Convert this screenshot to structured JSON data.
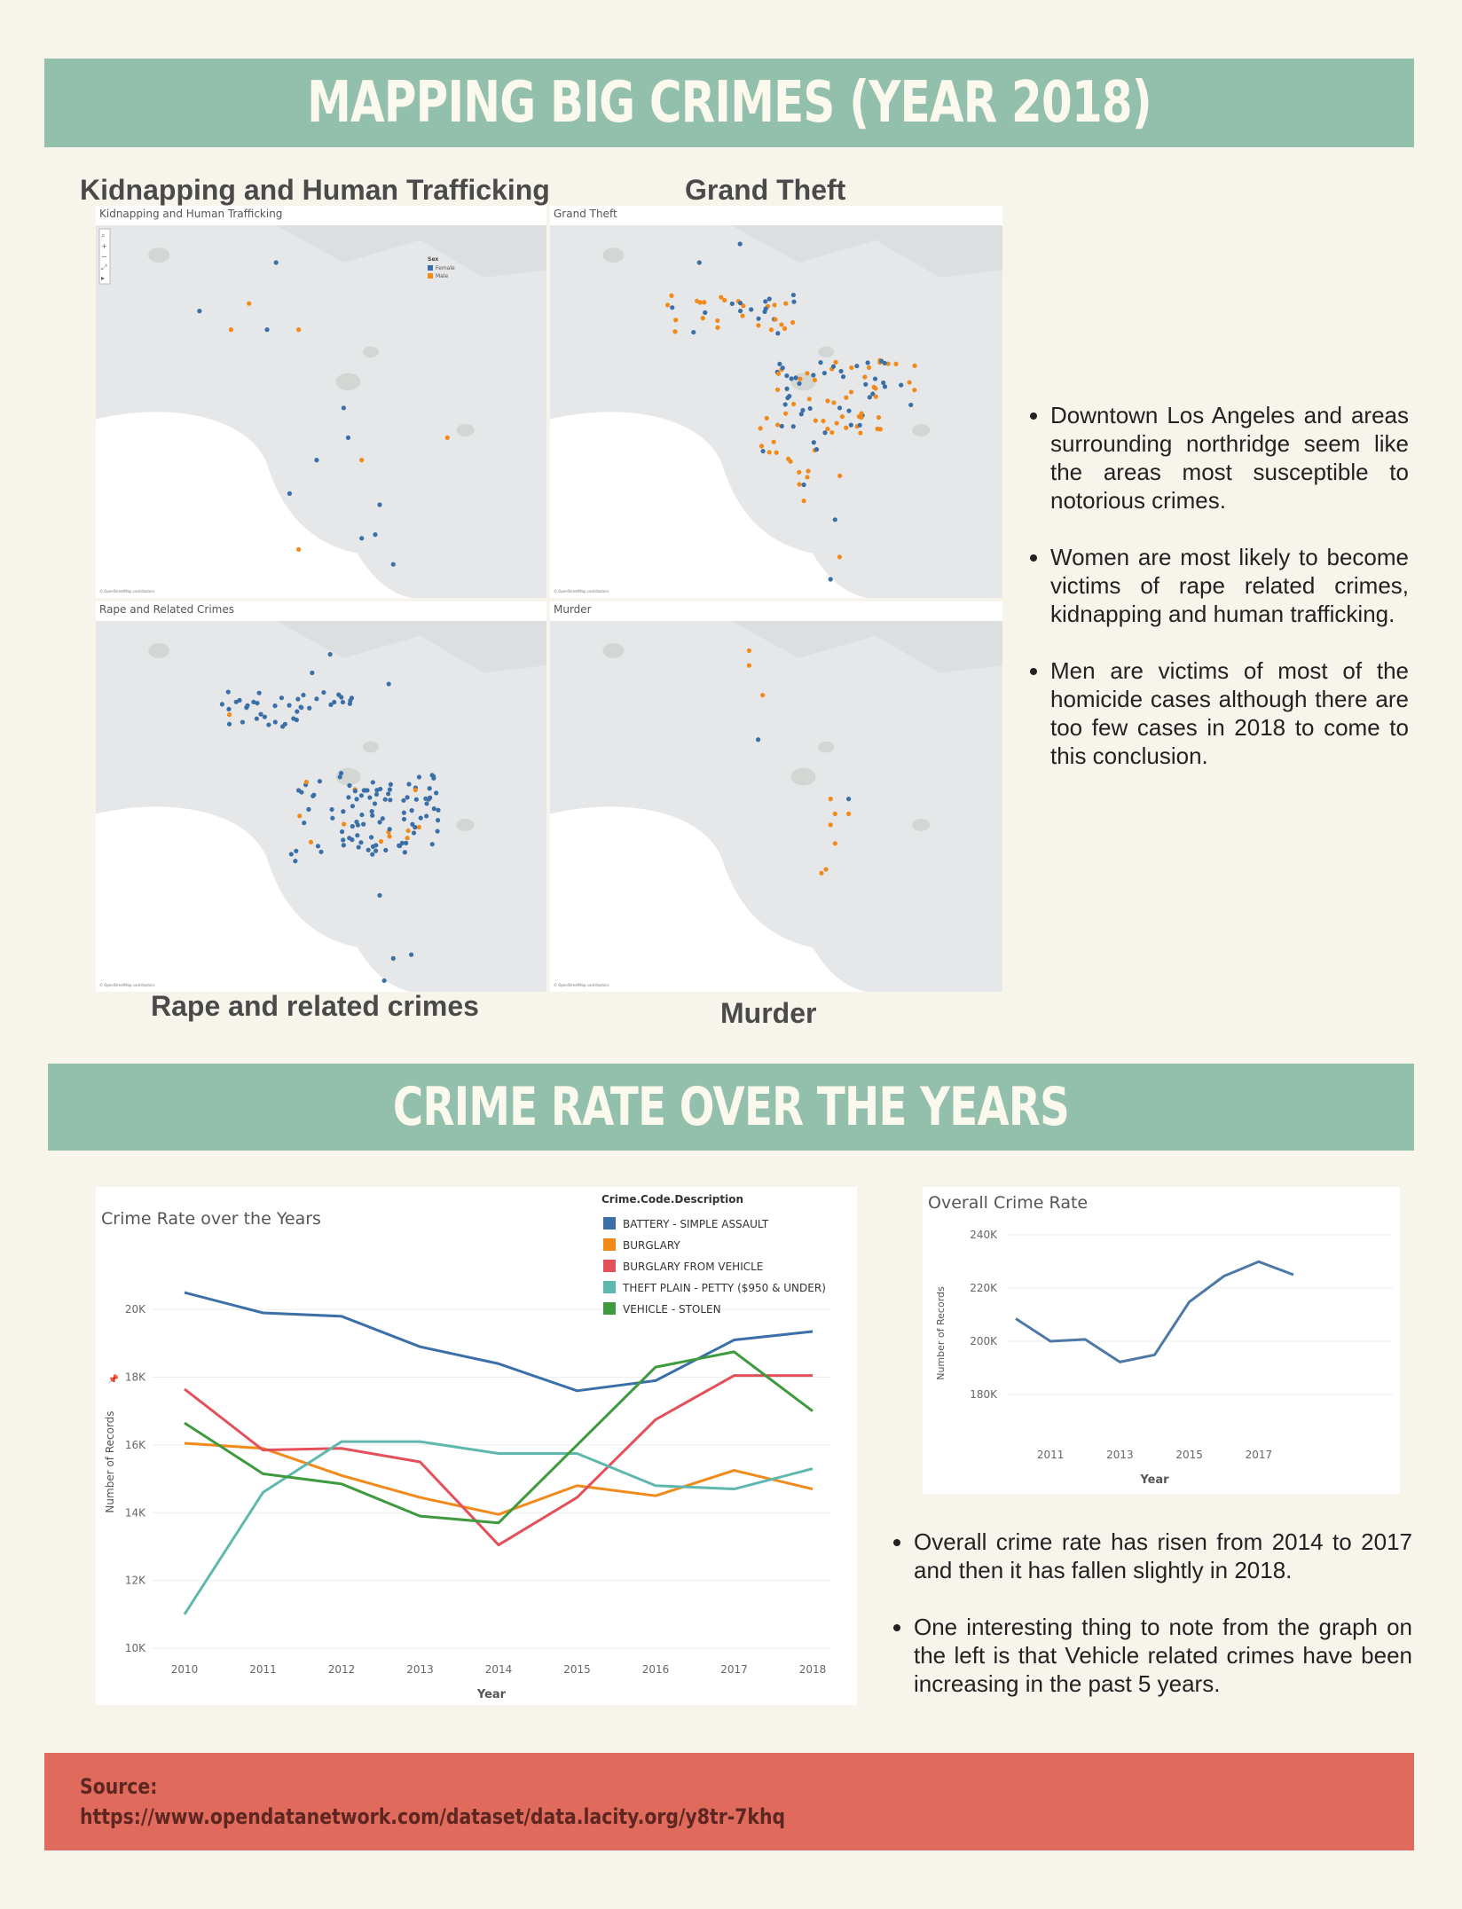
{
  "header": {
    "title": "MAPPING BIG CRIMES (YEAR 2018)"
  },
  "maps": {
    "kidnapping_title": "Kidnapping and Human Trafficking",
    "kidnapping_label": "Kidnapping and Human Trafficking",
    "grandtheft_title": "Grand Theft",
    "grandtheft_label": "Grand Theft",
    "rape_title": "Rape and related crimes",
    "rape_label": "Rape and Related Crimes",
    "murder_title": "Murder",
    "murder_label": "Murder",
    "legend_title": "Sex",
    "legend_female": "Female",
    "legend_male": "Male",
    "credit": "© OpenStreetMap contributors"
  },
  "findings_maps": [
    "Downtown Los Angeles and areas surrounding northridge seem like the areas most susceptible to notorious crimes.",
    "Women are most likely to become victims of rape related crimes, kidnapping and human trafficking.",
    "Men are victims of most of the homicide cases although there are too few cases in 2018 to come to this conclusion."
  ],
  "section2": {
    "title": "CRIME RATE OVER THE YEARS"
  },
  "colors": {
    "female": "#3a6fa8",
    "male": "#f28a1a",
    "battery": "#3a6fa8",
    "burglary": "#f28a1a",
    "burglary_vehicle": "#e4505a",
    "theft_plain": "#5fb8ae",
    "vehicle_stolen": "#3f9a3e",
    "overall": "#4e79a7"
  },
  "chart_data": [
    {
      "type": "line",
      "title": "Crime Rate over the Years",
      "xlabel": "Year",
      "ylabel": "Number of Records",
      "legend_title": "Crime.Code.Description",
      "legend_position": "top-right",
      "x": [
        2010,
        2011,
        2012,
        2013,
        2014,
        2015,
        2016,
        2017,
        2018
      ],
      "ylim": [
        10000,
        21000
      ],
      "yticks": [
        "10K",
        "12K",
        "14K",
        "16K",
        "18K",
        "20K"
      ],
      "grid": true,
      "series": [
        {
          "name": "BATTERY - SIMPLE ASSAULT",
          "values": [
            20500,
            19900,
            19800,
            18900,
            18400,
            17600,
            17900,
            19100,
            19350
          ]
        },
        {
          "name": "BURGLARY",
          "values": [
            16050,
            15900,
            15100,
            14450,
            13950,
            14800,
            14500,
            15250,
            14700
          ]
        },
        {
          "name": "BURGLARY FROM VEHICLE",
          "values": [
            17650,
            15850,
            15900,
            15500,
            13050,
            14450,
            16750,
            18050,
            18050
          ]
        },
        {
          "name": "THEFT PLAIN - PETTY ($950 & UNDER)",
          "values": [
            11000,
            14600,
            16100,
            16100,
            15750,
            15750,
            14800,
            14700,
            15300
          ]
        },
        {
          "name": "VEHICLE - STOLEN",
          "values": [
            16650,
            15150,
            14850,
            13900,
            13700,
            16000,
            18300,
            18750,
            17000
          ]
        }
      ]
    },
    {
      "type": "line",
      "title": "Overall Crime Rate",
      "xlabel": "Year",
      "ylabel": "Number of Records",
      "x": [
        2010,
        2011,
        2012,
        2013,
        2014,
        2015,
        2016,
        2017,
        2018
      ],
      "xticks": [
        "2011",
        "2013",
        "2015",
        "2017"
      ],
      "ylim": [
        170000,
        240000
      ],
      "yticks": [
        "180K",
        "200K",
        "220K",
        "240K"
      ],
      "grid": true,
      "series": [
        {
          "name": "",
          "values": [
            208500,
            200000,
            200700,
            192200,
            194900,
            214800,
            224500,
            229900,
            225000
          ]
        }
      ]
    }
  ],
  "findings_trends": [
    "Overall crime rate has risen from 2014 to 2017 and then it has fallen slightly in 2018.",
    "One interesting thing to note from the graph on the left is that Vehicle related crimes have been increasing in the past 5 years."
  ],
  "source": {
    "label": "Source:",
    "url": "https://www.opendatanetwork.com/dataset/data.lacity.org/y8tr-7khq"
  }
}
